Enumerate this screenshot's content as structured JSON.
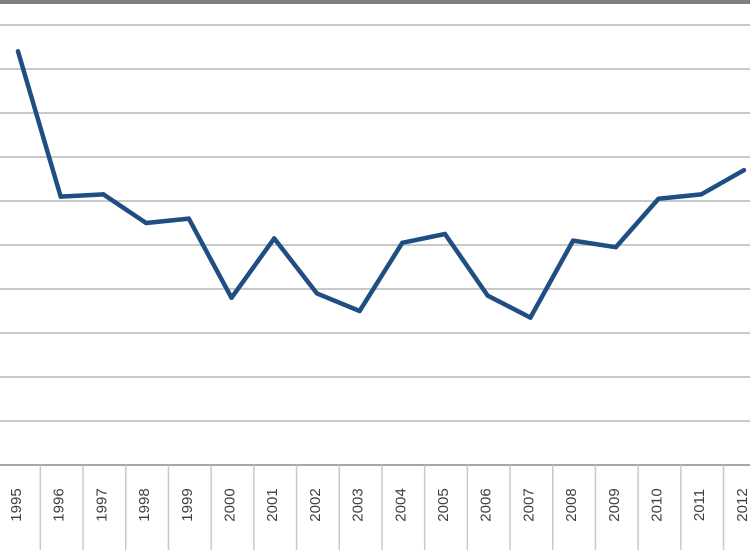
{
  "chart_data": {
    "type": "line",
    "categories": [
      "1995",
      "1996",
      "1997",
      "1998",
      "1999",
      "2000",
      "2001",
      "2002",
      "2003",
      "2004",
      "2005",
      "2006",
      "2007",
      "2008",
      "2009",
      "2010",
      "2011",
      "2012"
    ],
    "series": [
      {
        "values": [
          9.4,
          6.1,
          6.15,
          5.5,
          5.6,
          3.8,
          5.15,
          3.9,
          3.5,
          5.05,
          5.25,
          3.85,
          3.35,
          5.1,
          4.95,
          6.05,
          6.15,
          6.7
        ]
      }
    ],
    "ylim": [
      0,
      10
    ],
    "grid": true,
    "line_color": "#1f4e83",
    "grid_color": "#c9c9c9",
    "axis_color": "#8a8a8a",
    "top_border_color": "#7f7f7f",
    "tick_label_color": "#404040"
  }
}
